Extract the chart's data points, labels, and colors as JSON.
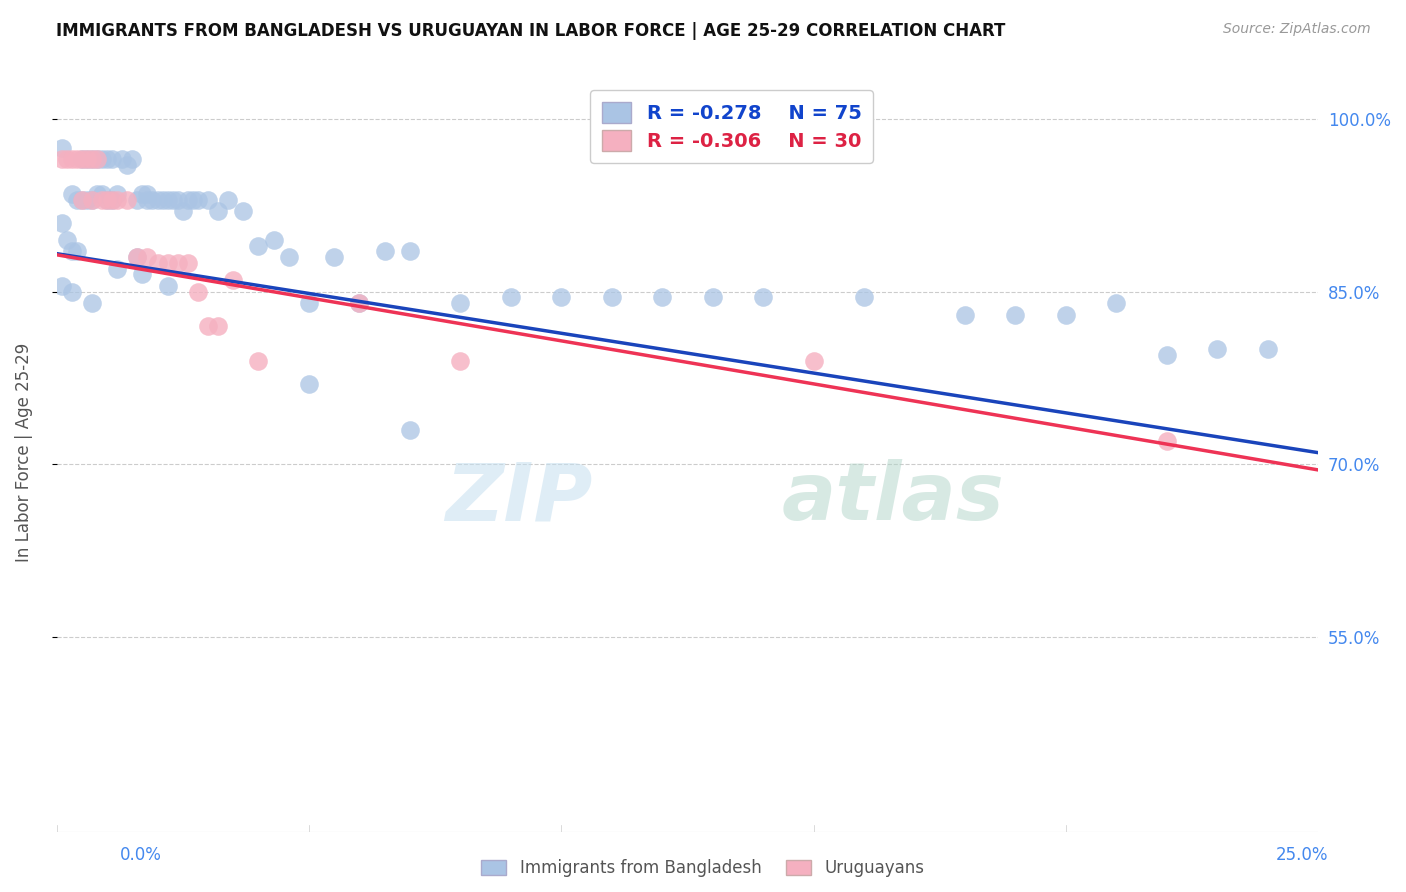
{
  "title": "IMMIGRANTS FROM BANGLADESH VS URUGUAYAN IN LABOR FORCE | AGE 25-29 CORRELATION CHART",
  "source": "Source: ZipAtlas.com",
  "ylabel": "In Labor Force | Age 25-29",
  "ytick_vals": [
    0.55,
    0.7,
    0.85,
    1.0
  ],
  "ytick_labels": [
    "55.0%",
    "70.0%",
    "85.0%",
    "100.0%"
  ],
  "xlim": [
    0.0,
    0.25
  ],
  "ylim": [
    0.38,
    1.04
  ],
  "legend_blue_r": "-0.278",
  "legend_blue_n": "75",
  "legend_pink_r": "-0.306",
  "legend_pink_n": "30",
  "blue_color": "#aac4e4",
  "pink_color": "#f5b0c0",
  "trendline_blue": "#1a44bb",
  "trendline_pink": "#ee3355",
  "watermark_zip": "ZIP",
  "watermark_atlas": "atlas",
  "blue_scatter_x": [
    0.001,
    0.001,
    0.002,
    0.003,
    0.003,
    0.004,
    0.004,
    0.005,
    0.005,
    0.006,
    0.006,
    0.007,
    0.007,
    0.008,
    0.008,
    0.009,
    0.009,
    0.01,
    0.01,
    0.011,
    0.011,
    0.012,
    0.013,
    0.014,
    0.015,
    0.016,
    0.016,
    0.017,
    0.018,
    0.018,
    0.019,
    0.02,
    0.021,
    0.022,
    0.023,
    0.024,
    0.025,
    0.026,
    0.027,
    0.028,
    0.03,
    0.032,
    0.034,
    0.037,
    0.04,
    0.043,
    0.046,
    0.05,
    0.055,
    0.06,
    0.065,
    0.07,
    0.08,
    0.09,
    0.1,
    0.11,
    0.12,
    0.13,
    0.14,
    0.16,
    0.18,
    0.19,
    0.2,
    0.21,
    0.22,
    0.23,
    0.24,
    0.001,
    0.003,
    0.007,
    0.012,
    0.017,
    0.022,
    0.05,
    0.07
  ],
  "blue_scatter_y": [
    0.975,
    0.91,
    0.895,
    0.935,
    0.885,
    0.93,
    0.885,
    0.965,
    0.93,
    0.965,
    0.93,
    0.965,
    0.93,
    0.965,
    0.935,
    0.965,
    0.935,
    0.965,
    0.93,
    0.965,
    0.93,
    0.935,
    0.965,
    0.96,
    0.965,
    0.93,
    0.88,
    0.935,
    0.93,
    0.935,
    0.93,
    0.93,
    0.93,
    0.93,
    0.93,
    0.93,
    0.92,
    0.93,
    0.93,
    0.93,
    0.93,
    0.92,
    0.93,
    0.92,
    0.89,
    0.895,
    0.88,
    0.84,
    0.88,
    0.84,
    0.885,
    0.885,
    0.84,
    0.845,
    0.845,
    0.845,
    0.845,
    0.845,
    0.845,
    0.845,
    0.83,
    0.83,
    0.83,
    0.84,
    0.795,
    0.8,
    0.8,
    0.855,
    0.85,
    0.84,
    0.87,
    0.865,
    0.855,
    0.77,
    0.73
  ],
  "pink_scatter_x": [
    0.001,
    0.002,
    0.003,
    0.004,
    0.005,
    0.005,
    0.006,
    0.007,
    0.007,
    0.008,
    0.009,
    0.01,
    0.011,
    0.012,
    0.014,
    0.016,
    0.018,
    0.02,
    0.022,
    0.024,
    0.026,
    0.028,
    0.03,
    0.032,
    0.035,
    0.04,
    0.06,
    0.08,
    0.15,
    0.22
  ],
  "pink_scatter_y": [
    0.965,
    0.965,
    0.965,
    0.965,
    0.965,
    0.93,
    0.965,
    0.965,
    0.93,
    0.965,
    0.93,
    0.93,
    0.93,
    0.93,
    0.93,
    0.88,
    0.88,
    0.875,
    0.875,
    0.875,
    0.875,
    0.85,
    0.82,
    0.82,
    0.86,
    0.79,
    0.84,
    0.79,
    0.79,
    0.72
  ],
  "trendline_blue_x0": 0.0,
  "trendline_blue_y0": 0.883,
  "trendline_blue_x1": 0.25,
  "trendline_blue_y1": 0.71,
  "trendline_pink_x0": 0.0,
  "trendline_pink_y0": 0.882,
  "trendline_pink_x1": 0.25,
  "trendline_pink_y1": 0.695
}
